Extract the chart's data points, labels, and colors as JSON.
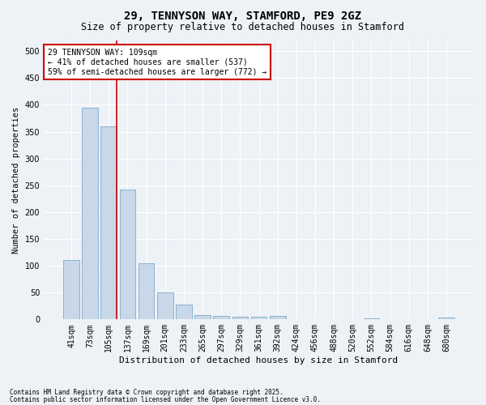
{
  "title1": "29, TENNYSON WAY, STAMFORD, PE9 2GZ",
  "title2": "Size of property relative to detached houses in Stamford",
  "xlabel": "Distribution of detached houses by size in Stamford",
  "ylabel": "Number of detached properties",
  "categories": [
    "41sqm",
    "73sqm",
    "105sqm",
    "137sqm",
    "169sqm",
    "201sqm",
    "233sqm",
    "265sqm",
    "297sqm",
    "329sqm",
    "361sqm",
    "392sqm",
    "424sqm",
    "456sqm",
    "488sqm",
    "520sqm",
    "552sqm",
    "584sqm",
    "616sqm",
    "648sqm",
    "680sqm"
  ],
  "values": [
    110,
    395,
    360,
    242,
    105,
    50,
    28,
    8,
    7,
    5,
    5,
    6,
    1,
    1,
    0,
    0,
    2,
    0,
    1,
    0,
    3
  ],
  "bar_color": "#c8d8e8",
  "bar_edge_color": "#7fa8c8",
  "background_color": "#eef2f7",
  "grid_color": "#ffffff",
  "vline_x": 2.43,
  "vline_color": "#cc0000",
  "annotation_line1": "29 TENNYSON WAY: 109sqm",
  "annotation_line2": "← 41% of detached houses are smaller (537)",
  "annotation_line3": "59% of semi-detached houses are larger (772) →",
  "annotation_box_color": "#ffffff",
  "annotation_box_edge": "#cc0000",
  "footer1": "Contains HM Land Registry data © Crown copyright and database right 2025.",
  "footer2": "Contains public sector information licensed under the Open Government Licence v3.0.",
  "ylim": [
    0,
    520
  ],
  "yticks": [
    0,
    50,
    100,
    150,
    200,
    250,
    300,
    350,
    400,
    450,
    500
  ]
}
